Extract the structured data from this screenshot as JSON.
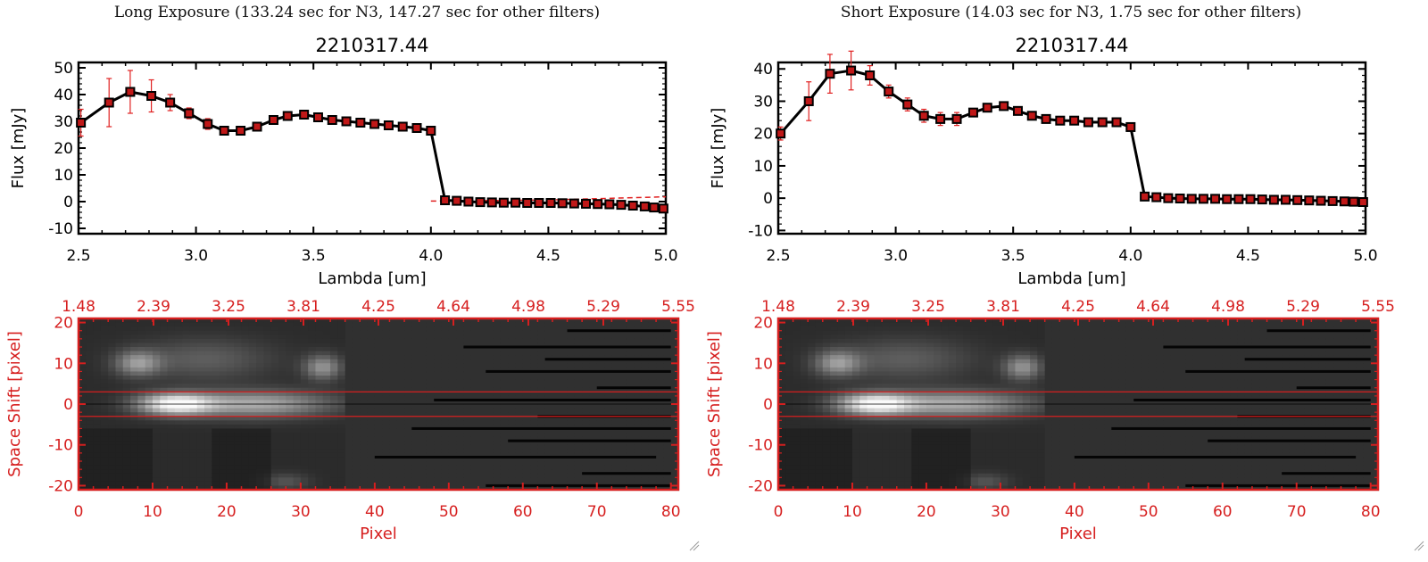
{
  "panels": [
    {
      "header": "Long Exposure (133.24 sec for N3, 147.27 sec for other filters)",
      "title": "2210317.44",
      "spectrum": {
        "type": "line",
        "xlabel": "Lambda [um]",
        "ylabel": "Flux [mJy]",
        "xlim": [
          2.5,
          5.0
        ],
        "ylim": [
          -12,
          52
        ],
        "xticks": [
          "2.5",
          "3.0",
          "3.5",
          "4.0",
          "4.5",
          "5.0"
        ],
        "yticks": [
          "-10",
          "0",
          "10",
          "20",
          "30",
          "40",
          "50"
        ],
        "x": [
          2.51,
          2.63,
          2.72,
          2.81,
          2.89,
          2.97,
          3.05,
          3.12,
          3.19,
          3.26,
          3.33,
          3.39,
          3.46,
          3.52,
          3.58,
          3.64,
          3.7,
          3.76,
          3.82,
          3.88,
          3.94,
          4.0,
          4.06,
          4.11,
          4.16,
          4.21,
          4.26,
          4.31,
          4.36,
          4.41,
          4.46,
          4.51,
          4.56,
          4.61,
          4.66,
          4.71,
          4.76,
          4.81,
          4.86,
          4.91,
          4.95,
          4.99
        ],
        "y": [
          29.5,
          37,
          41,
          39.5,
          37,
          33,
          29,
          26.5,
          26.5,
          28,
          30.5,
          32,
          32.5,
          31.5,
          30.5,
          30,
          29.5,
          29,
          28.5,
          28,
          27.5,
          26.5,
          0.5,
          0.3,
          0,
          -0.2,
          -0.3,
          -0.4,
          -0.4,
          -0.5,
          -0.5,
          -0.5,
          -0.6,
          -0.7,
          -0.8,
          -0.9,
          -1,
          -1.2,
          -1.5,
          -1.8,
          -2.2,
          -2.6
        ],
        "err": [
          5,
          9,
          8,
          6,
          3,
          2,
          2,
          1.5,
          1.5,
          1.5,
          1,
          1,
          1,
          1,
          1,
          1,
          1,
          1,
          1,
          1,
          1,
          1,
          0.6,
          0.6,
          0.6,
          0.6,
          0.6,
          0.6,
          0.6,
          0.6,
          0.6,
          0.6,
          0.6,
          0.6,
          0.6,
          0.6,
          0.6,
          0.6,
          0.6,
          0.6,
          0.6,
          0.6
        ],
        "dashed_line": {
          "x": [
            4.0,
            4.5,
            5.0
          ],
          "y": [
            0.2,
            0.6,
            1.8
          ]
        }
      },
      "image": {
        "top_ticks": [
          "1.48",
          "2.39",
          "3.25",
          "3.81",
          "4.25",
          "4.64",
          "4.98",
          "5.29",
          "5.55"
        ],
        "xticks": [
          "0",
          "10",
          "20",
          "30",
          "40",
          "50",
          "60",
          "70",
          "80"
        ],
        "yticks": [
          "20",
          "10",
          "0",
          "-10",
          "-20"
        ],
        "xlabel": "Pixel",
        "ylabel": "Space Shift [pixel]",
        "xlim": [
          0,
          81
        ],
        "ylim": [
          -21,
          21
        ],
        "band": [
          -3,
          3
        ]
      }
    },
    {
      "header": "Short Exposure (14.03 sec for N3, 1.75 sec for other filters)",
      "title": "2210317.44",
      "spectrum": {
        "type": "line",
        "xlabel": "Lambda [um]",
        "ylabel": "Flux [mJy]",
        "xlim": [
          2.5,
          5.0
        ],
        "ylim": [
          -11,
          42
        ],
        "xticks": [
          "2.5",
          "3.0",
          "3.5",
          "4.0",
          "4.5",
          "5.0"
        ],
        "yticks": [
          "-10",
          "0",
          "10",
          "20",
          "30",
          "40"
        ],
        "x": [
          2.51,
          2.63,
          2.72,
          2.81,
          2.89,
          2.97,
          3.05,
          3.12,
          3.19,
          3.26,
          3.33,
          3.39,
          3.46,
          3.52,
          3.58,
          3.64,
          3.7,
          3.76,
          3.82,
          3.88,
          3.94,
          4.0,
          4.06,
          4.11,
          4.16,
          4.21,
          4.26,
          4.31,
          4.36,
          4.41,
          4.46,
          4.51,
          4.56,
          4.61,
          4.66,
          4.71,
          4.76,
          4.81,
          4.86,
          4.91,
          4.95,
          4.99
        ],
        "y": [
          20,
          30,
          38.5,
          39.5,
          38,
          33,
          29,
          25.5,
          24.5,
          24.5,
          26.5,
          28,
          28.5,
          27,
          25.5,
          24.5,
          24,
          24,
          23.5,
          23.5,
          23.5,
          22,
          0.5,
          0.3,
          0,
          -0.1,
          -0.2,
          -0.2,
          -0.2,
          -0.3,
          -0.3,
          -0.3,
          -0.4,
          -0.5,
          -0.5,
          -0.6,
          -0.7,
          -0.8,
          -0.9,
          -1,
          -1.1,
          -1.2
        ],
        "err": [
          2,
          6,
          6,
          6,
          3,
          2,
          2,
          2,
          2,
          2,
          1,
          1,
          1,
          1,
          1,
          1,
          1,
          1,
          1,
          1,
          1,
          1,
          0.6,
          0.6,
          0.6,
          0.6,
          0.6,
          0.6,
          0.6,
          0.6,
          0.6,
          0.6,
          0.6,
          0.6,
          0.6,
          0.6,
          0.6,
          0.6,
          0.6,
          0.6,
          0.6,
          0.6
        ]
      },
      "image": {
        "top_ticks": [
          "1.48",
          "2.39",
          "3.25",
          "3.81",
          "4.25",
          "4.64",
          "4.98",
          "5.29",
          "5.55"
        ],
        "xticks": [
          "0",
          "10",
          "20",
          "30",
          "40",
          "50",
          "60",
          "70",
          "80"
        ],
        "yticks": [
          "20",
          "10",
          "0",
          "-10",
          "-20"
        ],
        "xlabel": "Pixel",
        "ylabel": "Space Shift [pixel]",
        "xlim": [
          0,
          81
        ],
        "ylim": [
          -21,
          21
        ],
        "band": [
          -3,
          3
        ]
      }
    }
  ],
  "colors": {
    "line": "#000000",
    "marker": "#c01818",
    "error": "#e02020",
    "frame_red": "#d61f1f",
    "image_bg": "#1a1a1a",
    "image_right": "#262626"
  },
  "chart_data": [
    {
      "type": "line",
      "title": "2210317.44",
      "xlabel": "Lambda [um]",
      "ylabel": "Flux [mJy]",
      "xlim": [
        2.5,
        5.0
      ],
      "ylim": [
        -12,
        52
      ],
      "series": [
        {
          "x": [
            2.51,
            2.63,
            2.72,
            2.81,
            2.89,
            2.97,
            3.05,
            3.12,
            3.19,
            3.26,
            3.33,
            3.39,
            3.46,
            3.52,
            3.58,
            3.64,
            3.7,
            3.76,
            3.82,
            3.88,
            3.94,
            4.0,
            4.06,
            4.11,
            4.16,
            4.21,
            4.26,
            4.31,
            4.36,
            4.41,
            4.46,
            4.51,
            4.56,
            4.61,
            4.66,
            4.71,
            4.76,
            4.81,
            4.86,
            4.91,
            4.95,
            4.99
          ],
          "values": [
            29.5,
            37,
            41,
            39.5,
            37,
            33,
            29,
            26.5,
            26.5,
            28,
            30.5,
            32,
            32.5,
            31.5,
            30.5,
            30,
            29.5,
            29,
            28.5,
            28,
            27.5,
            26.5,
            0.5,
            0.3,
            0,
            -0.2,
            -0.3,
            -0.4,
            -0.4,
            -0.5,
            -0.5,
            -0.5,
            -0.6,
            -0.7,
            -0.8,
            -0.9,
            -1,
            -1.2,
            -1.5,
            -1.8,
            -2.2,
            -2.6
          ]
        }
      ]
    },
    {
      "type": "line",
      "title": "2210317.44",
      "xlabel": "Lambda [um]",
      "ylabel": "Flux [mJy]",
      "xlim": [
        2.5,
        5.0
      ],
      "ylim": [
        -11,
        42
      ],
      "series": [
        {
          "x": [
            2.51,
            2.63,
            2.72,
            2.81,
            2.89,
            2.97,
            3.05,
            3.12,
            3.19,
            3.26,
            3.33,
            3.39,
            3.46,
            3.52,
            3.58,
            3.64,
            3.7,
            3.76,
            3.82,
            3.88,
            3.94,
            4.0,
            4.06,
            4.11,
            4.16,
            4.21,
            4.26,
            4.31,
            4.36,
            4.41,
            4.46,
            4.51,
            4.56,
            4.61,
            4.66,
            4.71,
            4.76,
            4.81,
            4.86,
            4.91,
            4.95,
            4.99
          ],
          "values": [
            20,
            30,
            38.5,
            39.5,
            38,
            33,
            29,
            25.5,
            24.5,
            24.5,
            26.5,
            28,
            28.5,
            27,
            25.5,
            24.5,
            24,
            24,
            23.5,
            23.5,
            23.5,
            22,
            0.5,
            0.3,
            0,
            -0.1,
            -0.2,
            -0.2,
            -0.2,
            -0.3,
            -0.3,
            -0.3,
            -0.4,
            -0.5,
            -0.5,
            -0.6,
            -0.7,
            -0.8,
            -0.9,
            -1,
            -1.1,
            -1.2
          ]
        }
      ]
    }
  ]
}
